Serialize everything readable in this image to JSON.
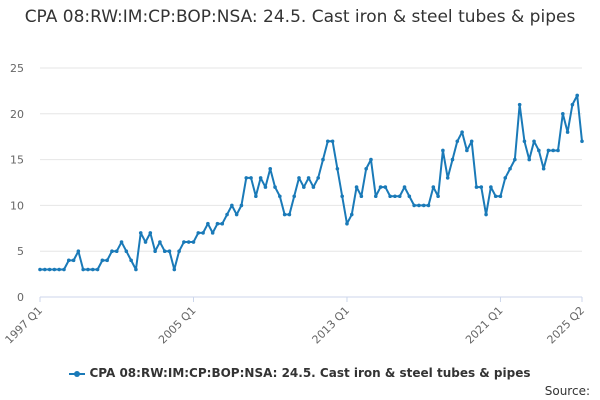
{
  "chart_data": {
    "type": "line",
    "title": "CPA 08:RW:IM:CP:BOP:NSA: 24.5. Cast iron & steel tubes & pipes",
    "xlabel": "",
    "ylabel": "",
    "ylim": [
      0,
      25
    ],
    "yticks": [
      0,
      5,
      10,
      15,
      20,
      25
    ],
    "xticks": [
      "1997 Q1",
      "2005 Q1",
      "2013 Q1",
      "2021 Q1",
      "2025 Q2"
    ],
    "grid": true,
    "legend_position": "bottom",
    "series": [
      {
        "name": "CPA 08:RW:IM:CP:BOP:NSA: 24.5. Cast iron & steel tubes & pipes",
        "color": "#1a7ab8",
        "start": "1997 Q1",
        "values": [
          3,
          3,
          3,
          3,
          3,
          3,
          4,
          4,
          5,
          3,
          3,
          3,
          3,
          4,
          4,
          5,
          5,
          6,
          5,
          4,
          3,
          7,
          6,
          7,
          5,
          6,
          5,
          5,
          3,
          5,
          6,
          6,
          6,
          7,
          7,
          8,
          7,
          8,
          8,
          9,
          10,
          9,
          10,
          13,
          13,
          11,
          13,
          12,
          14,
          12,
          11,
          9,
          9,
          11,
          13,
          12,
          13,
          12,
          13,
          15,
          17,
          17,
          14,
          11,
          8,
          9,
          12,
          11,
          14,
          15,
          11,
          12,
          12,
          11,
          11,
          11,
          12,
          11,
          10,
          10,
          10,
          10,
          12,
          11,
          16,
          13,
          15,
          17,
          18,
          16,
          17,
          12,
          12,
          9,
          12,
          11,
          11,
          13,
          14,
          15,
          21,
          17,
          15,
          17,
          16,
          14,
          16,
          16,
          16,
          20,
          18,
          21,
          22,
          17
        ]
      }
    ]
  },
  "legend": {
    "label": "CPA 08:RW:IM:CP:BOP:NSA: 24.5. Cast iron & steel tubes & pipes"
  },
  "source": {
    "label": "Source:"
  }
}
